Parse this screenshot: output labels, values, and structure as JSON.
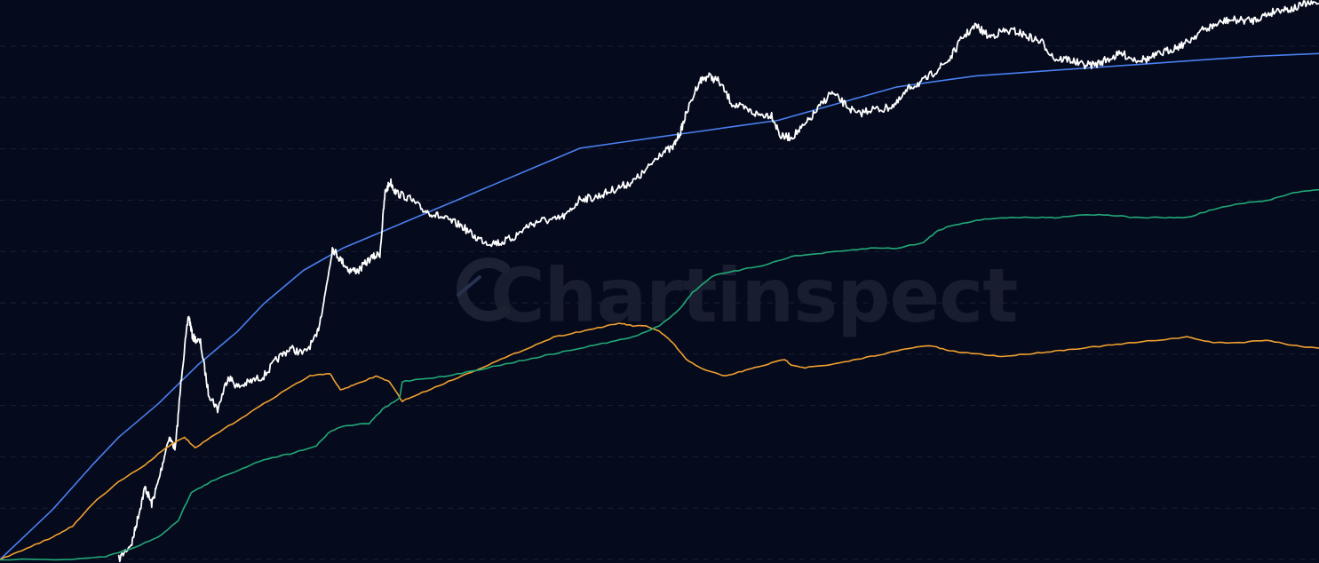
{
  "watermark": {
    "text": "Chartinspect"
  },
  "chart_data": {
    "type": "line",
    "xlim": [
      0,
      100
    ],
    "ylim": [
      0,
      100
    ],
    "grid": true,
    "log_scale": true,
    "series": [
      {
        "key": "model",
        "color": "#4a80f0",
        "points": [
          [
            0,
            0
          ],
          [
            4,
            9
          ],
          [
            7,
            17
          ],
          [
            9,
            22
          ],
          [
            12,
            28
          ],
          [
            15,
            35
          ],
          [
            18,
            41
          ],
          [
            20,
            46
          ],
          [
            23,
            52
          ],
          [
            26,
            56
          ],
          [
            29,
            59
          ],
          [
            32,
            62
          ],
          [
            35,
            65
          ],
          [
            38,
            68
          ],
          [
            41,
            71
          ],
          [
            44,
            74
          ],
          [
            47,
            75
          ],
          [
            50,
            76
          ],
          [
            53,
            77
          ],
          [
            56,
            78
          ],
          [
            59,
            79
          ],
          [
            62,
            81
          ],
          [
            65,
            83
          ],
          [
            68,
            85
          ],
          [
            71,
            86
          ],
          [
            74,
            87
          ],
          [
            77,
            87.5
          ],
          [
            80,
            88
          ],
          [
            83,
            88.5
          ],
          [
            86,
            89
          ],
          [
            89,
            89.5
          ],
          [
            92,
            90
          ],
          [
            95,
            90.5
          ],
          [
            98,
            90.8
          ],
          [
            100,
            91
          ]
        ]
      },
      {
        "key": "price",
        "color": "#ffffff",
        "points": [
          [
            9,
            0
          ],
          [
            10,
            3
          ],
          [
            10.5,
            8
          ],
          [
            11,
            13
          ],
          [
            11.5,
            10
          ],
          [
            12,
            14
          ],
          [
            12.8,
            22
          ],
          [
            13.3,
            20
          ],
          [
            13.8,
            34
          ],
          [
            14.3,
            44
          ],
          [
            14.6,
            40
          ],
          [
            15.2,
            39
          ],
          [
            15.8,
            30
          ],
          [
            16.5,
            27
          ],
          [
            17.3,
            33
          ],
          [
            18,
            31
          ],
          [
            19,
            32
          ],
          [
            20,
            33
          ],
          [
            21,
            36
          ],
          [
            22,
            38
          ],
          [
            23,
            37
          ],
          [
            24,
            40
          ],
          [
            24.6,
            47
          ],
          [
            25.2,
            56
          ],
          [
            25.8,
            54
          ],
          [
            26.5,
            52
          ],
          [
            27.2,
            52
          ],
          [
            28,
            54
          ],
          [
            28.8,
            55
          ],
          [
            29.2,
            66
          ],
          [
            29.6,
            68
          ],
          [
            30,
            66
          ],
          [
            31,
            65
          ],
          [
            32,
            63
          ],
          [
            33,
            62
          ],
          [
            34,
            61
          ],
          [
            35,
            60
          ],
          [
            36,
            58
          ],
          [
            37,
            57
          ],
          [
            38,
            57
          ],
          [
            39,
            58
          ],
          [
            40,
            60
          ],
          [
            41,
            61
          ],
          [
            42,
            61
          ],
          [
            43,
            62
          ],
          [
            44,
            65
          ],
          [
            45,
            65
          ],
          [
            46,
            66
          ],
          [
            47,
            67
          ],
          [
            48,
            68
          ],
          [
            49,
            70
          ],
          [
            50,
            73
          ],
          [
            51,
            74
          ],
          [
            51.6,
            77
          ],
          [
            52,
            80
          ],
          [
            53,
            86
          ],
          [
            53.7,
            87
          ],
          [
            54.5,
            86
          ],
          [
            55.5,
            82
          ],
          [
            56.5,
            81
          ],
          [
            57.5,
            80
          ],
          [
            58.5,
            80
          ],
          [
            59.2,
            76
          ],
          [
            60,
            76
          ],
          [
            61,
            78
          ],
          [
            62,
            81
          ],
          [
            63,
            84
          ],
          [
            64,
            82
          ],
          [
            65,
            80
          ],
          [
            66,
            81
          ],
          [
            67,
            81
          ],
          [
            68,
            82
          ],
          [
            69,
            85
          ],
          [
            70,
            86
          ],
          [
            71,
            88
          ],
          [
            72,
            90
          ],
          [
            73,
            94
          ],
          [
            74,
            96
          ],
          [
            75,
            94
          ],
          [
            76,
            95
          ],
          [
            77,
            95
          ],
          [
            78,
            94
          ],
          [
            79,
            93
          ],
          [
            80,
            90
          ],
          [
            81,
            90
          ],
          [
            82,
            89
          ],
          [
            83,
            89
          ],
          [
            84,
            90
          ],
          [
            85,
            91
          ],
          [
            86,
            90
          ],
          [
            87,
            90
          ],
          [
            88,
            91
          ],
          [
            89,
            92
          ],
          [
            90,
            93
          ],
          [
            91,
            95
          ],
          [
            92,
            96
          ],
          [
            93,
            97
          ],
          [
            94,
            97
          ],
          [
            95,
            97
          ],
          [
            96,
            98
          ],
          [
            97,
            99
          ],
          [
            98,
            99
          ],
          [
            99,
            100
          ],
          [
            100,
            100
          ]
        ]
      },
      {
        "key": "orange",
        "color": "#f0a030",
        "points": [
          [
            0,
            0
          ],
          [
            2,
            2
          ],
          [
            4,
            4
          ],
          [
            5.5,
            6
          ],
          [
            7,
            10
          ],
          [
            9,
            14
          ],
          [
            11,
            17
          ],
          [
            12.5,
            20
          ],
          [
            14,
            22
          ],
          [
            14.8,
            20
          ],
          [
            16,
            22
          ],
          [
            18,
            25
          ],
          [
            20,
            28
          ],
          [
            22,
            31
          ],
          [
            23.5,
            33
          ],
          [
            25,
            33.5
          ],
          [
            25.8,
            30.5
          ],
          [
            27,
            31.5
          ],
          [
            28.5,
            33
          ],
          [
            29.5,
            32
          ],
          [
            30.5,
            28.5
          ],
          [
            32,
            30
          ],
          [
            34,
            32
          ],
          [
            36,
            34
          ],
          [
            38,
            36
          ],
          [
            40,
            38
          ],
          [
            42,
            40
          ],
          [
            44,
            41
          ],
          [
            46,
            42
          ],
          [
            47,
            42.5
          ],
          [
            48,
            42
          ],
          [
            49,
            42
          ],
          [
            50,
            41
          ],
          [
            51,
            39
          ],
          [
            52,
            36
          ],
          [
            53.5,
            34
          ],
          [
            55,
            33
          ],
          [
            56.5,
            34
          ],
          [
            58,
            35
          ],
          [
            59.5,
            36
          ],
          [
            60,
            35
          ],
          [
            61,
            34.5
          ],
          [
            63,
            35
          ],
          [
            65,
            36
          ],
          [
            67,
            37
          ],
          [
            69,
            38
          ],
          [
            70.5,
            38.5
          ],
          [
            72,
            37.5
          ],
          [
            74,
            37
          ],
          [
            76,
            36.5
          ],
          [
            78,
            37
          ],
          [
            80,
            37.5
          ],
          [
            82,
            38
          ],
          [
            84,
            38.5
          ],
          [
            86,
            39
          ],
          [
            88,
            39.5
          ],
          [
            90,
            40
          ],
          [
            92,
            39
          ],
          [
            94,
            39
          ],
          [
            96,
            39.5
          ],
          [
            98,
            38.5
          ],
          [
            100,
            38
          ]
        ]
      },
      {
        "key": "green",
        "color": "#22a878",
        "points": [
          [
            0,
            0
          ],
          [
            5,
            0
          ],
          [
            8,
            0.5
          ],
          [
            10,
            2
          ],
          [
            12,
            4
          ],
          [
            13.5,
            7
          ],
          [
            14.5,
            12
          ],
          [
            16,
            14
          ],
          [
            18,
            16
          ],
          [
            20,
            18
          ],
          [
            22,
            19
          ],
          [
            24,
            20.5
          ],
          [
            25,
            23
          ],
          [
            26,
            24
          ],
          [
            28,
            24.5
          ],
          [
            29,
            27
          ],
          [
            30.3,
            29
          ],
          [
            30.5,
            32
          ],
          [
            32,
            32.5
          ],
          [
            34,
            33
          ],
          [
            36,
            34
          ],
          [
            38,
            35
          ],
          [
            40,
            36
          ],
          [
            42,
            37
          ],
          [
            44,
            38
          ],
          [
            46,
            39
          ],
          [
            48,
            40
          ],
          [
            50,
            42
          ],
          [
            51.5,
            45
          ],
          [
            52.5,
            48
          ],
          [
            54,
            51
          ],
          [
            56,
            52
          ],
          [
            58,
            53
          ],
          [
            60,
            54.5
          ],
          [
            62,
            55
          ],
          [
            64,
            55.5
          ],
          [
            66,
            56
          ],
          [
            68,
            56
          ],
          [
            70,
            57
          ],
          [
            71,
            59
          ],
          [
            72,
            60
          ],
          [
            74,
            61
          ],
          [
            76,
            61.5
          ],
          [
            78,
            61.5
          ],
          [
            80,
            61.5
          ],
          [
            82,
            62
          ],
          [
            84,
            62
          ],
          [
            86,
            61.5
          ],
          [
            88,
            61.5
          ],
          [
            90,
            61.5
          ],
          [
            92,
            63
          ],
          [
            94,
            64
          ],
          [
            96,
            64.5
          ],
          [
            98,
            66
          ],
          [
            100,
            66.5
          ]
        ]
      }
    ]
  }
}
